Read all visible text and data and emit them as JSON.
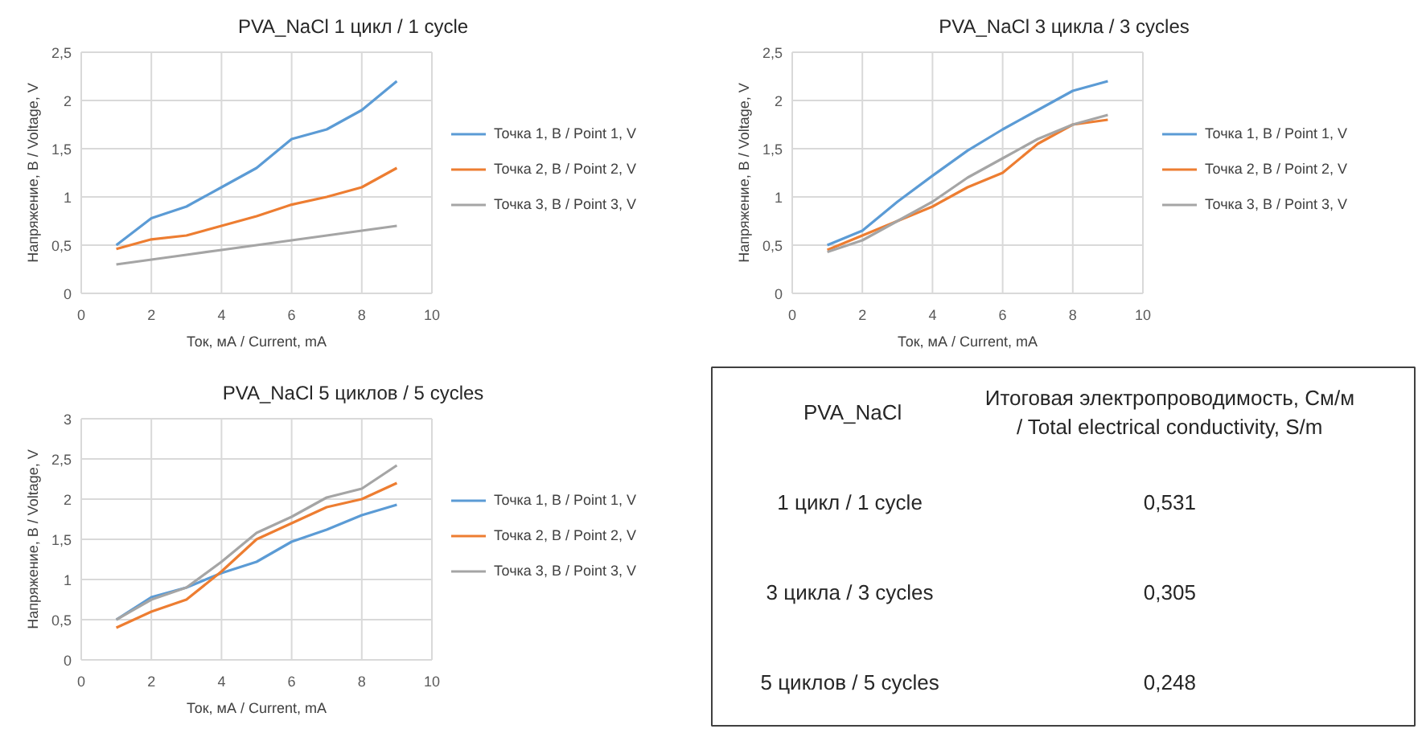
{
  "chart_data": [
    {
      "type": "line",
      "title": "PVA_NaCl 1 цикл / 1 cycle",
      "xlabel": "Ток, мА / Current, mA",
      "ylabel": "Напряжение, В / Voltage, V",
      "x": [
        1,
        2,
        3,
        4,
        5,
        6,
        7,
        8,
        9
      ],
      "series": [
        {
          "name": "Точка 1, В / Point 1, V",
          "color": "#5b9bd5",
          "values": [
            0.5,
            0.78,
            0.9,
            1.1,
            1.3,
            1.6,
            1.7,
            1.9,
            2.2
          ]
        },
        {
          "name": "Точка 2, В / Point 2, V",
          "color": "#ed7d31",
          "values": [
            0.46,
            0.56,
            0.6,
            0.7,
            0.8,
            0.92,
            1.0,
            1.1,
            1.3
          ]
        },
        {
          "name": "Точка 3, В / Point 3, V",
          "color": "#a5a5a5",
          "values": [
            0.3,
            0.35,
            0.4,
            0.45,
            0.5,
            0.55,
            0.6,
            0.65,
            0.7
          ]
        }
      ],
      "xlim": [
        0,
        10
      ],
      "xticks": [
        0,
        2,
        4,
        6,
        8,
        10
      ],
      "ylim": [
        0,
        2.5
      ],
      "yticks": [
        0,
        {
          "value": 0.5,
          "label": "0,5"
        },
        1,
        {
          "value": 1.5,
          "label": "1,5"
        },
        2,
        {
          "value": 2.5,
          "label": "2,5"
        }
      ],
      "grid": true,
      "legend": "right"
    },
    {
      "type": "line",
      "title": "PVA_NaCl 3 цикла / 3 cycles",
      "xlabel": "Ток, мА / Current, mA",
      "ylabel": "Напряжение, В / Voltage, V",
      "x": [
        1,
        2,
        3,
        4,
        5,
        6,
        7,
        8,
        9
      ],
      "series": [
        {
          "name": "Точка 1, В / Point 1, V",
          "color": "#5b9bd5",
          "values": [
            0.5,
            0.65,
            0.95,
            1.22,
            1.48,
            1.7,
            1.9,
            2.1,
            2.2
          ]
        },
        {
          "name": "Точка 2, В / Point 2, V",
          "color": "#ed7d31",
          "values": [
            0.45,
            0.6,
            0.75,
            0.9,
            1.1,
            1.25,
            1.55,
            1.75,
            1.8
          ]
        },
        {
          "name": "Точка 3, В / Point 3, V",
          "color": "#a5a5a5",
          "values": [
            0.43,
            0.55,
            0.75,
            0.95,
            1.2,
            1.4,
            1.6,
            1.75,
            1.85
          ]
        }
      ],
      "xlim": [
        0,
        10
      ],
      "xticks": [
        0,
        2,
        4,
        6,
        8,
        10
      ],
      "ylim": [
        0,
        2.5
      ],
      "yticks": [
        0,
        {
          "value": 0.5,
          "label": "0,5"
        },
        1,
        {
          "value": 1.5,
          "label": "1,5"
        },
        2,
        {
          "value": 2.5,
          "label": "2,5"
        }
      ],
      "grid": true,
      "legend": "right"
    },
    {
      "type": "line",
      "title": "PVA_NaCl 5 циклов / 5 cycles",
      "xlabel": "Ток, мА / Current, mA",
      "ylabel": "Напряжение, В / Voltage, V",
      "x": [
        1,
        2,
        3,
        4,
        5,
        6,
        7,
        8,
        9
      ],
      "series": [
        {
          "name": "Точка 1, В / Point 1, V",
          "color": "#5b9bd5",
          "values": [
            0.5,
            0.78,
            0.9,
            1.08,
            1.22,
            1.47,
            1.62,
            1.8,
            1.93
          ]
        },
        {
          "name": "Точка 2, В / Point 2, V",
          "color": "#ed7d31",
          "values": [
            0.4,
            0.6,
            0.75,
            1.1,
            1.5,
            1.7,
            1.9,
            2.0,
            2.2
          ]
        },
        {
          "name": "Точка 3, В / Point 3, V",
          "color": "#a5a5a5",
          "values": [
            0.5,
            0.75,
            0.9,
            1.22,
            1.58,
            1.78,
            2.02,
            2.13,
            2.42
          ]
        }
      ],
      "xlim": [
        0,
        10
      ],
      "xticks": [
        0,
        2,
        4,
        6,
        8,
        10
      ],
      "ylim": [
        0,
        3
      ],
      "yticks": [
        0,
        {
          "value": 0.5,
          "label": "0,5"
        },
        1,
        {
          "value": 1.5,
          "label": "1,5"
        },
        2,
        {
          "value": 2.5,
          "label": "2,5"
        },
        3
      ],
      "grid": true,
      "legend": "right"
    },
    {
      "type": "other",
      "annotations": [
        "PVA_NaCl",
        "Итоговая электропроводимость, См/м\n/ Total electrical conductivity, S/m",
        "1 цикл  / 1 cycle",
        "0,531",
        "3 цикла  / 3 cycles",
        "0,305",
        "5 циклов  / 5 cycles",
        "0,248"
      ]
    }
  ]
}
